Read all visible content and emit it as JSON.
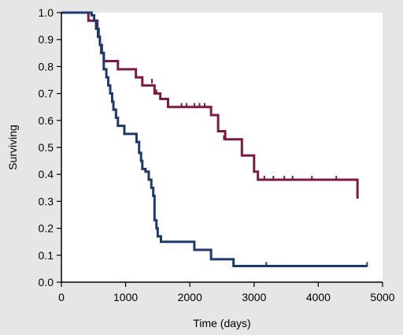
{
  "chart_data": {
    "type": "line",
    "title": "",
    "xlabel": "Time (days)",
    "ylabel": "Surviving",
    "xlim": [
      0,
      5000
    ],
    "ylim": [
      0,
      1.0
    ],
    "x_ticks": [
      0,
      1000,
      2000,
      3000,
      4000,
      5000
    ],
    "x_tick_labels": [
      "0",
      "1000",
      "2000",
      "3000",
      "4000",
      "5000"
    ],
    "y_ticks": [
      0,
      0.1,
      0.2,
      0.3,
      0.4,
      0.5,
      0.6,
      0.7,
      0.8,
      0.9,
      1.0
    ],
    "y_tick_labels": [
      "0.0",
      "0.1",
      "0.2",
      "0.3",
      "0.4",
      "0.5",
      "0.6",
      "0.7",
      "0.8",
      "0.9",
      "1.0"
    ],
    "grid": false,
    "legend": "none",
    "series": [
      {
        "color": "#7a1a45",
        "step": true,
        "points": [
          [
            0,
            1.0
          ],
          [
            400,
            1.0
          ],
          [
            420,
            0.97
          ],
          [
            550,
            0.97
          ],
          [
            560,
            0.94
          ],
          [
            580,
            0.91
          ],
          [
            600,
            0.88
          ],
          [
            620,
            0.85
          ],
          [
            660,
            0.82
          ],
          [
            860,
            0.82
          ],
          [
            880,
            0.79
          ],
          [
            1130,
            0.79
          ],
          [
            1160,
            0.76
          ],
          [
            1240,
            0.76
          ],
          [
            1260,
            0.73
          ],
          [
            1420,
            0.73
          ],
          [
            1450,
            0.7
          ],
          [
            1520,
            0.7
          ],
          [
            1540,
            0.68
          ],
          [
            1640,
            0.68
          ],
          [
            1660,
            0.65
          ],
          [
            2290,
            0.65
          ],
          [
            2330,
            0.62
          ],
          [
            2400,
            0.62
          ],
          [
            2440,
            0.56
          ],
          [
            2530,
            0.56
          ],
          [
            2550,
            0.53
          ],
          [
            2780,
            0.53
          ],
          [
            2810,
            0.47
          ],
          [
            2980,
            0.47
          ],
          [
            3000,
            0.41
          ],
          [
            3040,
            0.41
          ],
          [
            3060,
            0.38
          ],
          [
            4590,
            0.38
          ],
          [
            4610,
            0.31
          ]
        ],
        "censored": [
          [
            1410,
            0.74
          ],
          [
            1480,
            0.7
          ],
          [
            1870,
            0.65
          ],
          [
            1950,
            0.65
          ],
          [
            2070,
            0.65
          ],
          [
            2150,
            0.65
          ],
          [
            2230,
            0.65
          ],
          [
            2530,
            0.53
          ],
          [
            3160,
            0.38
          ],
          [
            3300,
            0.38
          ],
          [
            3470,
            0.38
          ],
          [
            3600,
            0.38
          ],
          [
            3900,
            0.38
          ],
          [
            4280,
            0.38
          ]
        ]
      },
      {
        "color": "#1c3a6e",
        "step": true,
        "points": [
          [
            0,
            1.0
          ],
          [
            440,
            1.0
          ],
          [
            470,
            0.99
          ],
          [
            510,
            0.97
          ],
          [
            540,
            0.94
          ],
          [
            570,
            0.91
          ],
          [
            600,
            0.88
          ],
          [
            630,
            0.85
          ],
          [
            660,
            0.79
          ],
          [
            700,
            0.76
          ],
          [
            730,
            0.73
          ],
          [
            760,
            0.7
          ],
          [
            790,
            0.67
          ],
          [
            810,
            0.64
          ],
          [
            850,
            0.61
          ],
          [
            880,
            0.58
          ],
          [
            950,
            0.58
          ],
          [
            980,
            0.55
          ],
          [
            1150,
            0.55
          ],
          [
            1170,
            0.52
          ],
          [
            1210,
            0.48
          ],
          [
            1240,
            0.45
          ],
          [
            1260,
            0.42
          ],
          [
            1310,
            0.41
          ],
          [
            1360,
            0.38
          ],
          [
            1400,
            0.35
          ],
          [
            1430,
            0.32
          ],
          [
            1450,
            0.23
          ],
          [
            1480,
            0.2
          ],
          [
            1500,
            0.17
          ],
          [
            1550,
            0.15
          ],
          [
            2050,
            0.15
          ],
          [
            2070,
            0.12
          ],
          [
            2300,
            0.12
          ],
          [
            2330,
            0.085
          ],
          [
            2640,
            0.085
          ],
          [
            2680,
            0.06
          ],
          [
            4760,
            0.06
          ]
        ],
        "censored": [
          [
            3190,
            0.06
          ],
          [
            4760,
            0.06
          ]
        ]
      }
    ]
  }
}
